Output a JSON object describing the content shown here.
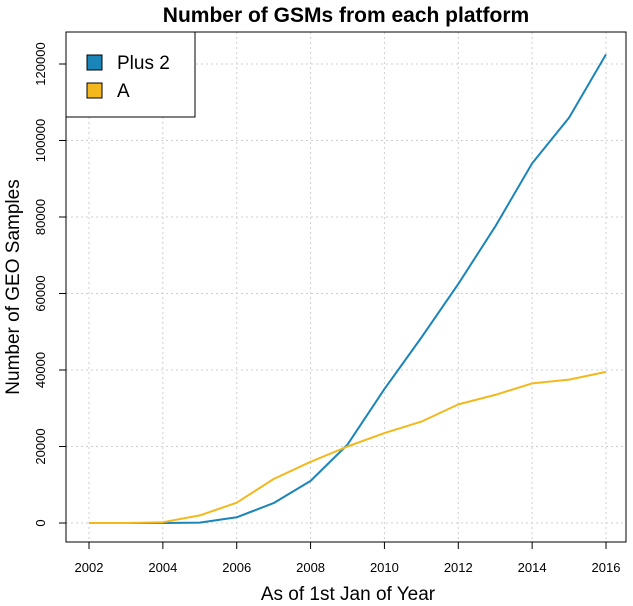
{
  "colors": {
    "plus2": "#1a85b8",
    "a": "#f2b81c"
  },
  "chart_data": {
    "type": "line",
    "title": "Number of GSMs from each platform",
    "xlabel": "As of 1st Jan of Year",
    "ylabel": "Number of GEO Samples",
    "xlim": [
      2002,
      2016
    ],
    "ylim": [
      0,
      125000
    ],
    "x": [
      2002,
      2003,
      2004,
      2005,
      2006,
      2007,
      2008,
      2009,
      2010,
      2011,
      2012,
      2013,
      2014,
      2015,
      2016
    ],
    "xticks": [
      2002,
      2004,
      2006,
      2008,
      2010,
      2012,
      2014,
      2016
    ],
    "xtick_labels": [
      "2002",
      "2004",
      "2006",
      "2008",
      "2010",
      "2012",
      "2014",
      "2016"
    ],
    "yticks": [
      0,
      20000,
      40000,
      60000,
      80000,
      100000,
      120000
    ],
    "ytick_labels": [
      "0",
      "20000",
      "40000",
      "60000",
      "80000",
      "100000",
      "120000"
    ],
    "legend_position": "top-left",
    "series": [
      {
        "name": "Plus 2",
        "color": "#1a85b8",
        "values": [
          0,
          0,
          0,
          100,
          1500,
          5200,
          11000,
          20500,
          35000,
          48500,
          62500,
          77500,
          94000,
          106000,
          122500
        ]
      },
      {
        "name": "A",
        "color": "#f2b81c",
        "values": [
          0,
          0,
          200,
          2000,
          5300,
          11500,
          16000,
          20000,
          23500,
          26500,
          31000,
          33500,
          36500,
          37500,
          39500
        ]
      }
    ]
  }
}
